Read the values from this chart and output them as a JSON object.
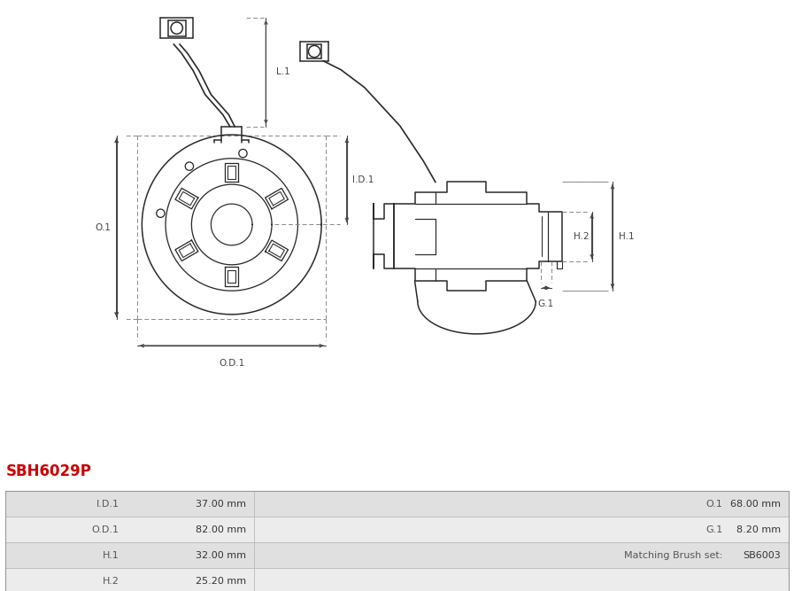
{
  "title": "SBH6029P",
  "title_color": "#cc0000",
  "line_color": "#2a2a2a",
  "dim_color": "#444444",
  "dash_color": "#888888",
  "table_bg_1": "#e0e0e0",
  "table_bg_2": "#ececec",
  "table_border": "#bbbbbb",
  "table_data": [
    [
      "I.D.1",
      "37.00 mm",
      "O.1",
      "68.00 mm"
    ],
    [
      "O.D.1",
      "82.00 mm",
      "G.1",
      "8.20 mm"
    ],
    [
      "H.1",
      "32.00 mm",
      "Matching Brush set:",
      "SB6003"
    ],
    [
      "H.2",
      "25.20 mm",
      "",
      ""
    ]
  ],
  "fig_width": 8.97,
  "fig_height": 6.67,
  "dpi": 100
}
